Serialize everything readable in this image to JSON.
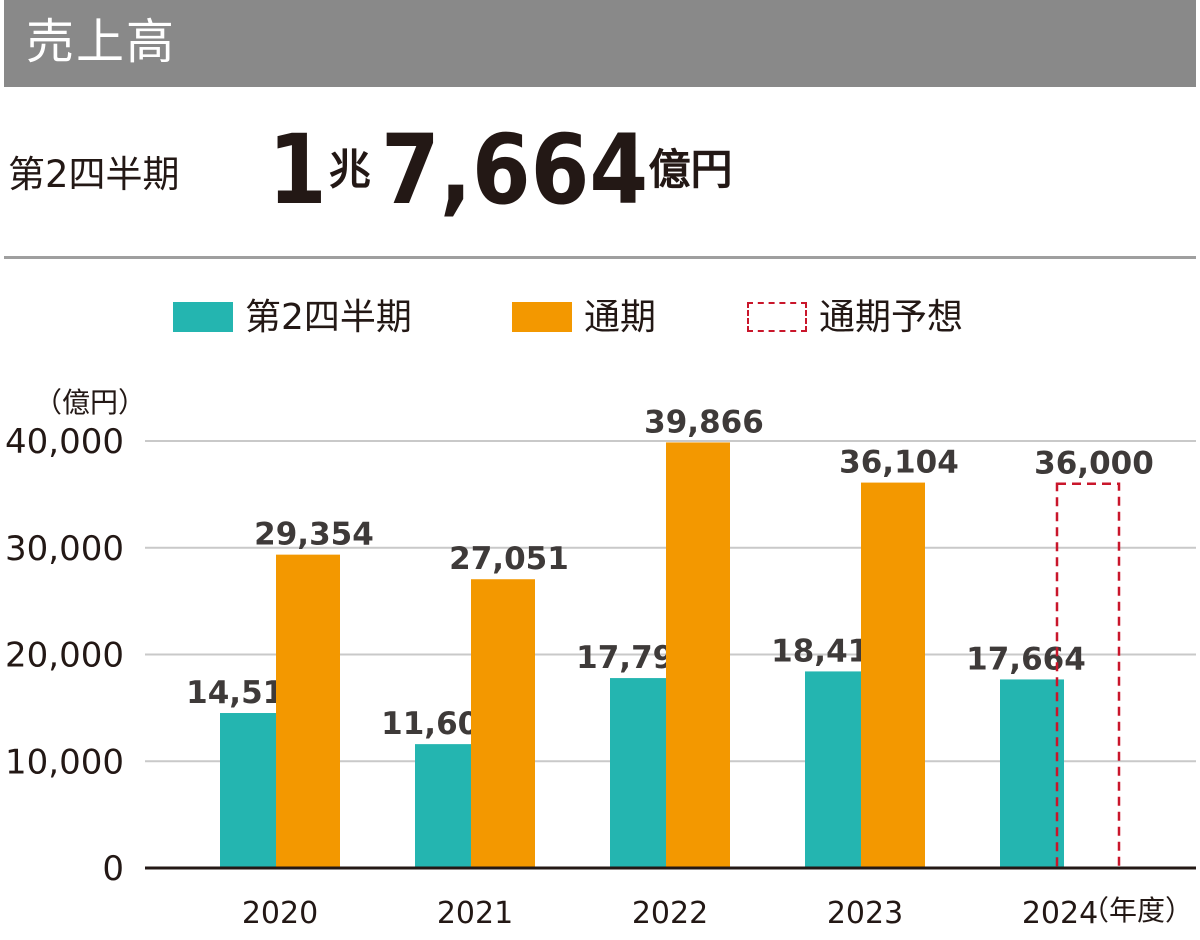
{
  "title": "売上高",
  "headline": {
    "label": "第2四半期",
    "value_cho": "1",
    "unit_cho": "兆",
    "value_oku": "7,664",
    "unit_oku": "億円"
  },
  "legend": [
    {
      "key": "q2",
      "label": "第2四半期",
      "style": "solid",
      "color": "#24b5b0"
    },
    {
      "key": "fy",
      "label": "通期",
      "style": "solid",
      "color": "#f39800"
    },
    {
      "key": "forecast",
      "label": "通期予想",
      "style": "dashed",
      "color": "#c9162b"
    }
  ],
  "chart_data": {
    "type": "bar",
    "unit_label": "（億円）",
    "x_unit_label": "（年度）",
    "categories": [
      "2020",
      "2021",
      "2022",
      "2023",
      "2024"
    ],
    "ylim": [
      0,
      40000
    ],
    "yticks": [
      0,
      10000,
      20000,
      30000,
      40000
    ],
    "ytick_labels": [
      "0",
      "10,000",
      "20,000",
      "30,000",
      "40,000"
    ],
    "grid": true,
    "legend_position": "top",
    "series": [
      {
        "name": "第2四半期",
        "color": "#24b5b0",
        "style": "solid",
        "values": [
          14519,
          11604,
          17792,
          18415,
          17664
        ],
        "value_labels": [
          "14,519",
          "11,604",
          "17,792",
          "18,415",
          "17,664"
        ]
      },
      {
        "name": "通期",
        "color": "#f39800",
        "style": "solid",
        "values": [
          29354,
          27051,
          39866,
          36104,
          null
        ],
        "value_labels": [
          "29,354",
          "27,051",
          "39,866",
          "36,104",
          null
        ]
      },
      {
        "name": "通期予想",
        "color": "#c9162b",
        "style": "dashed",
        "values": [
          null,
          null,
          null,
          null,
          36000
        ],
        "value_labels": [
          null,
          null,
          null,
          null,
          "36,000"
        ]
      }
    ]
  }
}
